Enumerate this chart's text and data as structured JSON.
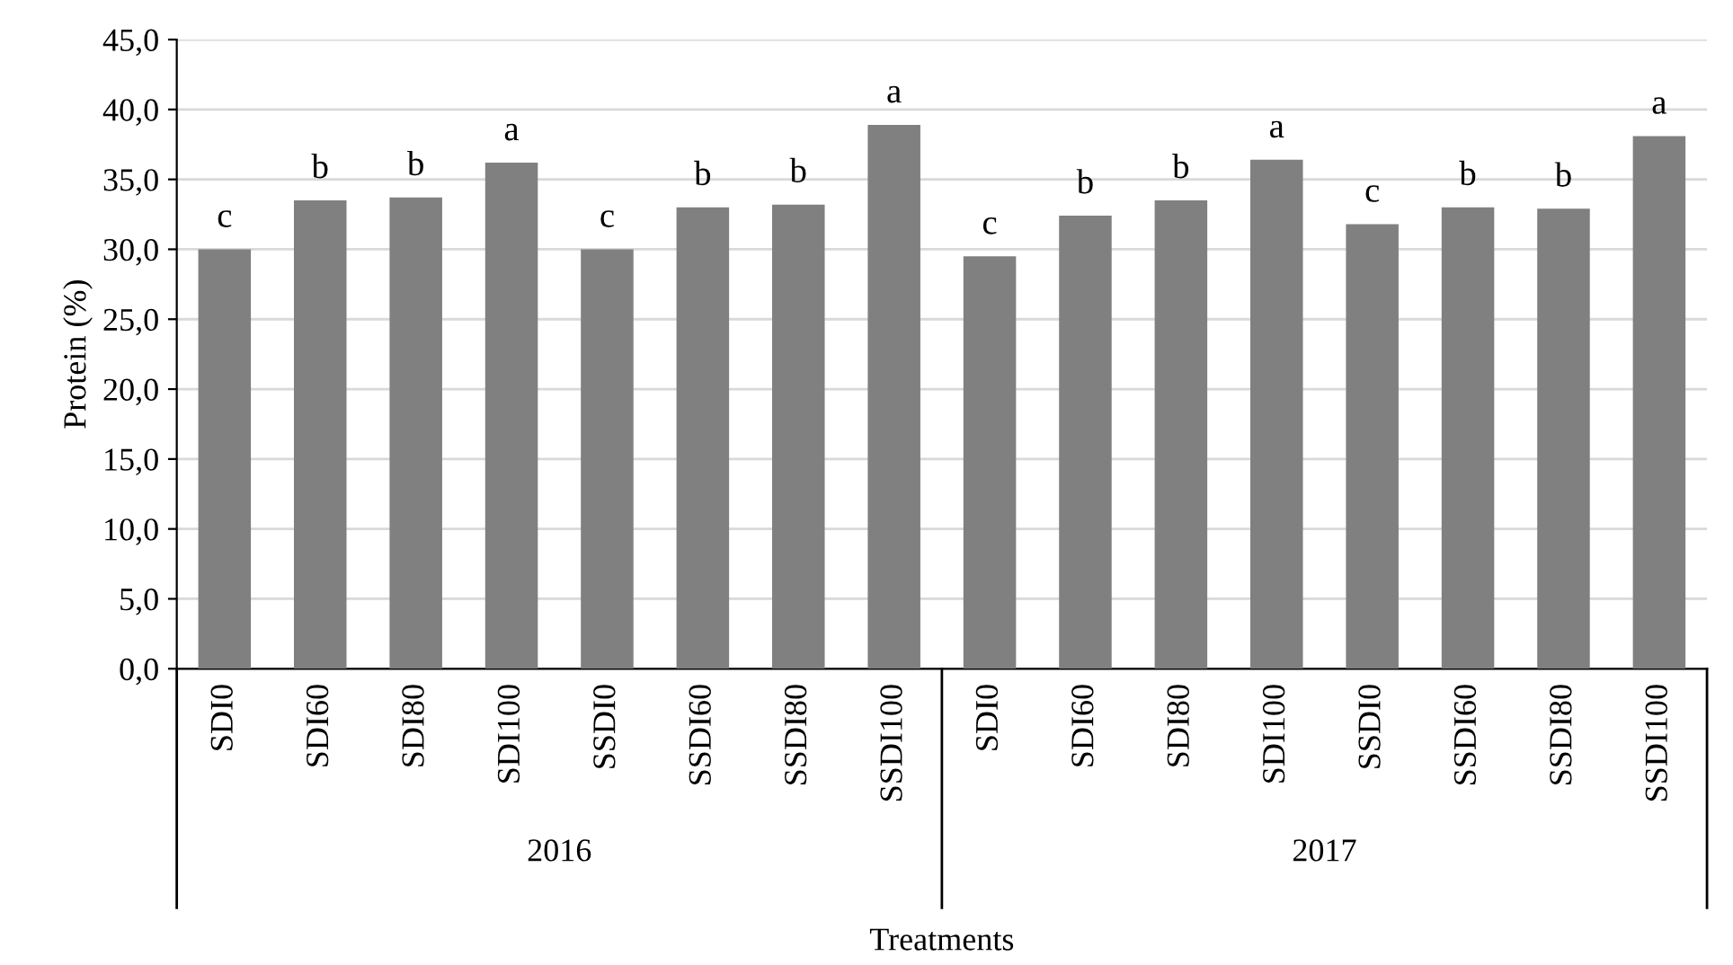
{
  "chart_data": {
    "type": "bar",
    "xlabel": "Treatments",
    "ylabel": "Protein (%)",
    "categories": [
      "SDI0",
      "SDI60",
      "SDI80",
      "SDI100",
      "SSDI0",
      "SSDI60",
      "SSDI80",
      "SSDI100",
      "SDI0",
      "SDI60",
      "SDI80",
      "SDI100",
      "SSDI0",
      "SSDI60",
      "SSDI80",
      "SSDI100"
    ],
    "values": [
      30.0,
      33.5,
      33.7,
      36.2,
      30.0,
      33.0,
      33.2,
      38.9,
      29.5,
      32.4,
      33.5,
      36.4,
      31.8,
      33.0,
      32.9,
      38.1
    ],
    "value_labels": [
      "c",
      "b",
      "b",
      "a",
      "c",
      "b",
      "b",
      "a",
      "c",
      "b",
      "b",
      "a",
      "c",
      "b",
      "b",
      "a"
    ],
    "color": "#808080",
    "annotations": [
      "2016",
      "2017"
    ],
    "ylim": [
      0,
      45
    ],
    "yticks": [
      {
        "value": 0,
        "label": "0,0"
      },
      {
        "value": 5,
        "label": "5,0"
      },
      {
        "value": 10,
        "label": "10,0"
      },
      {
        "value": 15,
        "label": "15,0"
      },
      {
        "value": 20,
        "label": "20,0"
      },
      {
        "value": 25,
        "label": "25,0"
      },
      {
        "value": 30,
        "label": "30,0"
      },
      {
        "value": 35,
        "label": "35,0"
      },
      {
        "value": 40,
        "label": "40,0"
      },
      {
        "value": 45,
        "label": "45,0"
      }
    ],
    "grid": "y"
  }
}
